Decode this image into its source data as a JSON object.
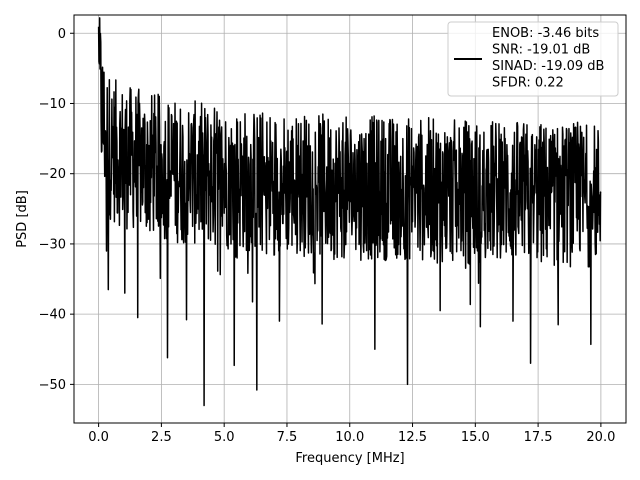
{
  "chart_data": {
    "type": "line",
    "title": "",
    "xlabel": "Frequency [MHz]",
    "ylabel": "PSD [dB]",
    "xlim": [
      -0.98,
      21.0
    ],
    "ylim": [
      -55.5,
      2.6
    ],
    "xticks": [
      0.0,
      2.5,
      5.0,
      7.5,
      10.0,
      12.5,
      15.0,
      17.5,
      20.0
    ],
    "xtick_labels": [
      "0.0",
      "2.5",
      "5.0",
      "7.5",
      "10.0",
      "12.5",
      "15.0",
      "17.5",
      "20.0"
    ],
    "yticks": [
      0,
      -10,
      -20,
      -30,
      -40,
      -50
    ],
    "ytick_labels": [
      "0",
      "−10",
      "−20",
      "−30",
      "−40",
      "−50"
    ],
    "grid": true,
    "legend_position": "top-right",
    "series": [
      {
        "color": "#000000",
        "noise_floor_db": -22,
        "noise_band_db": [
          -35,
          -12
        ],
        "x": [
          0.0,
          0.02,
          0.05,
          0.08,
          0.12,
          0.2,
          0.35,
          0.5,
          0.75,
          1.0,
          1.5,
          2.0,
          2.5,
          3.0,
          4.0,
          5.0,
          6.0,
          8.0,
          10.0,
          12.0,
          14.0,
          16.0,
          18.0,
          20.0
        ],
        "values": [
          0.0,
          -4.0,
          -8.0,
          -6.5,
          -10.0,
          -12.0,
          -14.0,
          -15.5,
          -16.0,
          -16.5,
          -17.0,
          -17.5,
          -18.0,
          -18.5,
          -19.0,
          -19.5,
          -20.0,
          -20.5,
          -21.0,
          -21.0,
          -21.5,
          -21.5,
          -22.0,
          -22.0
        ],
        "minima": [
          {
            "x": 0.32,
            "y": -31.0
          },
          {
            "x": 0.38,
            "y": -36.5
          },
          {
            "x": 1.05,
            "y": -37.0
          },
          {
            "x": 1.55,
            "y": -40.5
          },
          {
            "x": 2.75,
            "y": -46.2
          },
          {
            "x": 3.5,
            "y": -40.8
          },
          {
            "x": 4.2,
            "y": -53.0
          },
          {
            "x": 5.4,
            "y": -47.3
          },
          {
            "x": 6.3,
            "y": -50.8
          },
          {
            "x": 7.2,
            "y": -41.0
          },
          {
            "x": 8.9,
            "y": -41.4
          },
          {
            "x": 11.0,
            "y": -45.0
          },
          {
            "x": 12.3,
            "y": -50.0
          },
          {
            "x": 13.6,
            "y": -39.5
          },
          {
            "x": 15.2,
            "y": -41.8
          },
          {
            "x": 16.5,
            "y": -41.0
          },
          {
            "x": 17.2,
            "y": -47.0
          },
          {
            "x": 18.3,
            "y": -41.5
          },
          {
            "x": 19.6,
            "y": -44.3
          }
        ]
      }
    ],
    "legend": {
      "lines": [
        "ENOB: -3.46 bits",
        "SNR: -19.01 dB",
        "SINAD: -19.09 dB",
        "SFDR: 0.22"
      ]
    }
  }
}
